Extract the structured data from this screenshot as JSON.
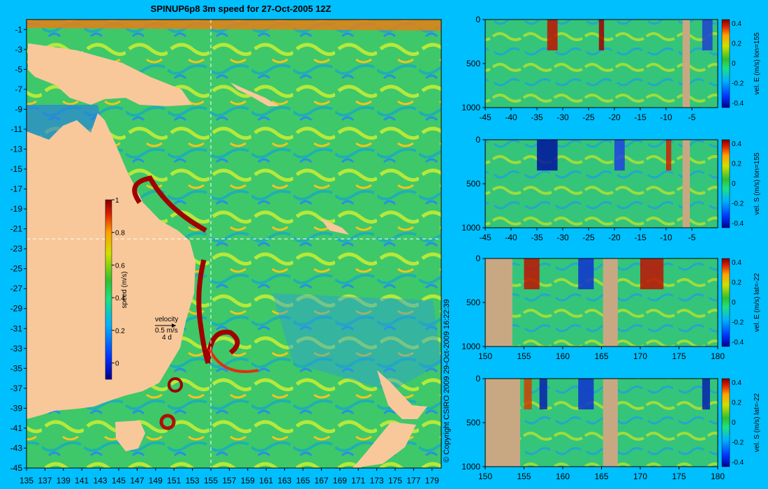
{
  "title": "SPINUP6p8 3m speed for 27-Oct-2005 12Z",
  "copyright": "© Copyright CSIRO 2009   29-Oct-2009 16:22:39",
  "colors": {
    "background": "#00bfff",
    "land": "#f8c89a",
    "section_land": "#c8a882",
    "crosshair": "#ffffff"
  },
  "chart_data": [
    {
      "type": "heatmap",
      "quantity": "speed",
      "xlim": [
        135,
        180
      ],
      "ylim": [
        -45,
        0
      ],
      "x_ticks": [
        "135",
        "137",
        "139",
        "141",
        "143",
        "145",
        "147",
        "149",
        "151",
        "153",
        "155",
        "157",
        "159",
        "161",
        "163",
        "165",
        "167",
        "169",
        "171",
        "173",
        "175",
        "177",
        "179"
      ],
      "y_ticks": [
        "-1",
        "-3",
        "-5",
        "-7",
        "-9",
        "-11",
        "-13",
        "-15",
        "-17",
        "-19",
        "-21",
        "-23",
        "-25",
        "-27",
        "-29",
        "-31",
        "-33",
        "-35",
        "-37",
        "-39",
        "-41",
        "-43",
        "-45"
      ],
      "crosshair": {
        "lon": 155,
        "lat": -22
      },
      "colorbar": {
        "label": "speed (m/s)",
        "range": [
          -0.1,
          1
        ],
        "ticks": [
          "0",
          "0.2",
          "0.4",
          "0.6",
          "0.8",
          "1"
        ]
      },
      "legend": {
        "title": "velocity",
        "speed": "0.5 m/s",
        "duration": "4 d"
      }
    },
    {
      "type": "heatmap",
      "quantity": "vel. E (m/s) lon=155",
      "xlim": [
        -45,
        0
      ],
      "ylim": [
        1000,
        0
      ],
      "x_ticks": [
        "-45",
        "-40",
        "-35",
        "-30",
        "-25",
        "-20",
        "-15",
        "-10",
        "-5"
      ],
      "y_ticks": [
        "0",
        "500",
        "1000"
      ],
      "colorbar": {
        "label": "vel. E (m/s) lon=155",
        "range": [
          -0.4,
          0.4
        ],
        "ticks": [
          "0.4",
          "0.2",
          "0",
          "-0.2",
          "-0.4"
        ]
      }
    },
    {
      "type": "heatmap",
      "quantity": "vel. S (m/s) lon=155",
      "xlim": [
        -45,
        0
      ],
      "ylim": [
        1000,
        0
      ],
      "x_ticks": [
        "-45",
        "-40",
        "-35",
        "-30",
        "-25",
        "-20",
        "-15",
        "-10",
        "-5"
      ],
      "y_ticks": [
        "0",
        "500",
        "1000"
      ],
      "colorbar": {
        "label": "vel. S (m/s) lon=155",
        "range": [
          -0.4,
          0.4
        ],
        "ticks": [
          "0.4",
          "0.2",
          "0",
          "-0.2",
          "-0.4"
        ]
      }
    },
    {
      "type": "heatmap",
      "quantity": "vel. E (m/s) lat=-22",
      "xlim": [
        150,
        180
      ],
      "ylim": [
        1000,
        0
      ],
      "x_ticks": [
        "150",
        "155",
        "160",
        "165",
        "170",
        "175",
        "180"
      ],
      "y_ticks": [
        "0",
        "500",
        "1000"
      ],
      "colorbar": {
        "label": "vel. E (m/s) lat=-22",
        "range": [
          -0.4,
          0.4
        ],
        "ticks": [
          "0.4",
          "0.2",
          "0",
          "-0.2",
          "-0.4"
        ]
      }
    },
    {
      "type": "heatmap",
      "quantity": "vel. S (m/s) lat=-22",
      "xlim": [
        150,
        180
      ],
      "ylim": [
        1000,
        0
      ],
      "x_ticks": [
        "150",
        "155",
        "160",
        "165",
        "170",
        "175",
        "180"
      ],
      "y_ticks": [
        "0",
        "500",
        "1000"
      ],
      "colorbar": {
        "label": "vel. S (m/s) lat=-22",
        "range": [
          -0.4,
          0.4
        ],
        "ticks": [
          "0.4",
          "0.2",
          "0",
          "-0.2",
          "-0.4"
        ]
      }
    }
  ]
}
